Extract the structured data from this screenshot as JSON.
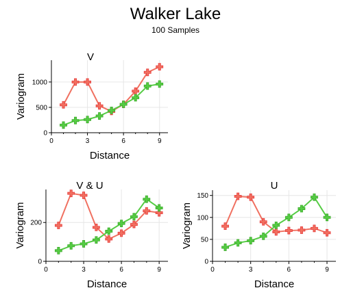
{
  "title": "Walker Lake",
  "subtitle": "100 Samples",
  "colors": {
    "red": "#f07060",
    "red_marker": "#e83a3a",
    "green": "#55cc44",
    "green_marker": "#3caa2a"
  },
  "chart_data": [
    {
      "type": "line",
      "title": "V",
      "xlabel": "Distance",
      "ylabel": "Variogram",
      "xlim": [
        0,
        9.7
      ],
      "ylim": [
        0,
        1430
      ],
      "xticks": [
        0,
        3,
        6,
        9
      ],
      "yticks": [
        0,
        500,
        1000
      ],
      "series": [
        {
          "color": "red",
          "x": [
            1,
            2,
            3,
            4,
            5,
            6,
            7,
            8,
            9
          ],
          "y": [
            550,
            1000,
            1000,
            530,
            420,
            560,
            820,
            1190,
            1300
          ]
        },
        {
          "color": "green",
          "x": [
            1,
            2,
            3,
            4,
            5,
            6,
            7,
            8,
            9
          ],
          "y": [
            150,
            240,
            260,
            330,
            440,
            560,
            690,
            920,
            960
          ]
        }
      ]
    },
    {
      "type": "line",
      "title": "V & U",
      "xlabel": "Distance",
      "ylabel": "Variogram",
      "xlim": [
        0,
        9.7
      ],
      "ylim": [
        0,
        370
      ],
      "xticks": [
        0,
        3,
        6,
        9
      ],
      "yticks": [
        0,
        200
      ],
      "series": [
        {
          "color": "red",
          "x": [
            1,
            2,
            3,
            4,
            5,
            6,
            7,
            8,
            9
          ],
          "y": [
            185,
            350,
            340,
            175,
            115,
            145,
            190,
            260,
            250
          ]
        },
        {
          "color": "green",
          "x": [
            1,
            2,
            3,
            4,
            5,
            6,
            7,
            8,
            9
          ],
          "y": [
            55,
            80,
            90,
            110,
            155,
            195,
            230,
            320,
            275
          ]
        }
      ]
    },
    {
      "type": "line",
      "title": "U",
      "xlabel": "Distance",
      "ylabel": "Variogram",
      "xlim": [
        0,
        9.7
      ],
      "ylim": [
        0,
        162
      ],
      "xticks": [
        0,
        3,
        6,
        9
      ],
      "yticks": [
        0,
        50,
        100,
        150
      ],
      "series": [
        {
          "color": "red",
          "x": [
            1,
            2,
            3,
            4,
            5,
            6,
            7,
            8,
            9
          ],
          "y": [
            80,
            148,
            146,
            90,
            67,
            70,
            71,
            75,
            65
          ]
        },
        {
          "color": "green",
          "x": [
            1,
            2,
            3,
            4,
            5,
            6,
            7,
            8,
            9
          ],
          "y": [
            32,
            42,
            47,
            57,
            82,
            100,
            120,
            146,
            100
          ]
        }
      ]
    }
  ]
}
